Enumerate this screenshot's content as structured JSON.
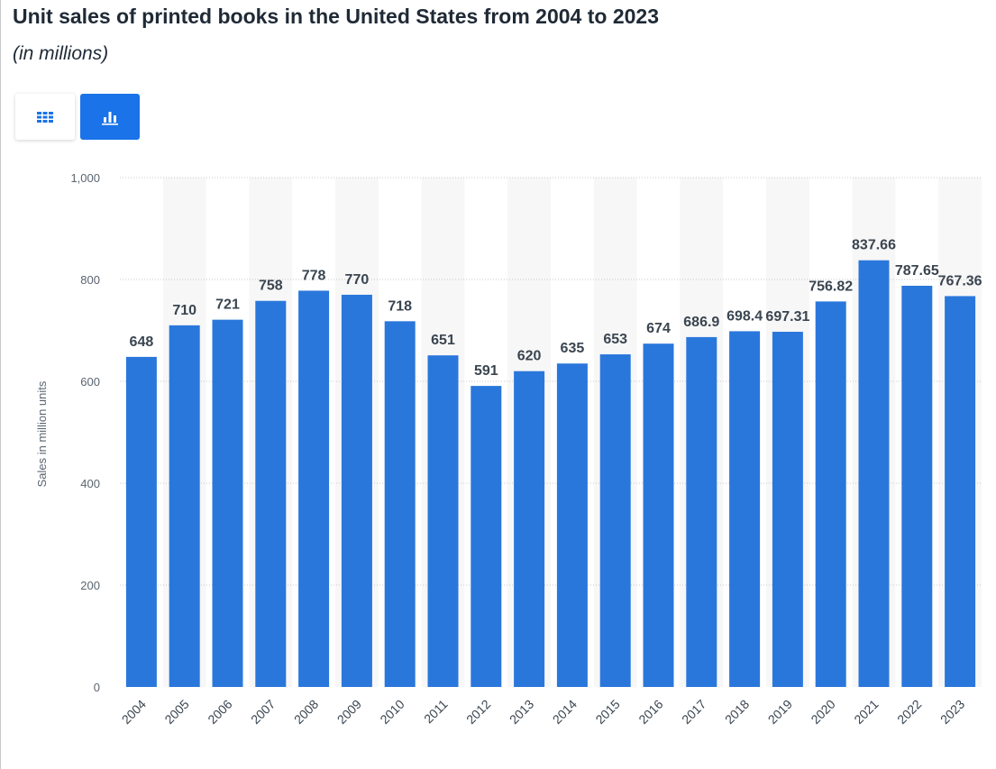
{
  "title": "Unit sales of printed books in the United States from 2004 to 2023",
  "subtitle": "(in millions)",
  "view_toggle": {
    "table_icon": "table-grid-icon",
    "chart_icon": "bar-chart-icon",
    "active": "chart"
  },
  "colors": {
    "bar": "#2a77dc",
    "button_active": "#1a73e8",
    "band": "#f7f7f7",
    "grid": "#c8c8c8"
  },
  "chart_data": {
    "type": "bar",
    "title": "Unit sales of printed books in the United States from 2004 to 2023",
    "subtitle": "(in millions)",
    "xlabel": "",
    "ylabel": "Sales in million units",
    "ylim": [
      0,
      1000
    ],
    "yticks": [
      0,
      200,
      400,
      600,
      800,
      1000
    ],
    "ytick_labels": [
      "0",
      "200",
      "400",
      "600",
      "800",
      "1,000"
    ],
    "grid": true,
    "categories": [
      "2004",
      "2005",
      "2006",
      "2007",
      "2008",
      "2009",
      "2010",
      "2011",
      "2012",
      "2013",
      "2014",
      "2015",
      "2016",
      "2017",
      "2018",
      "2019",
      "2020",
      "2021",
      "2022",
      "2023"
    ],
    "values": [
      648,
      710,
      721,
      758,
      778,
      770,
      718,
      651,
      591,
      620,
      635,
      653,
      674,
      686.9,
      698.4,
      697.31,
      756.82,
      837.66,
      787.65,
      767.36
    ],
    "value_labels": [
      "648",
      "710",
      "721",
      "758",
      "778",
      "770",
      "718",
      "651",
      "591",
      "620",
      "635",
      "653",
      "674",
      "686.9",
      "698.4",
      "697.31",
      "756.82",
      "837.66",
      "787.65",
      "767.36"
    ]
  }
}
